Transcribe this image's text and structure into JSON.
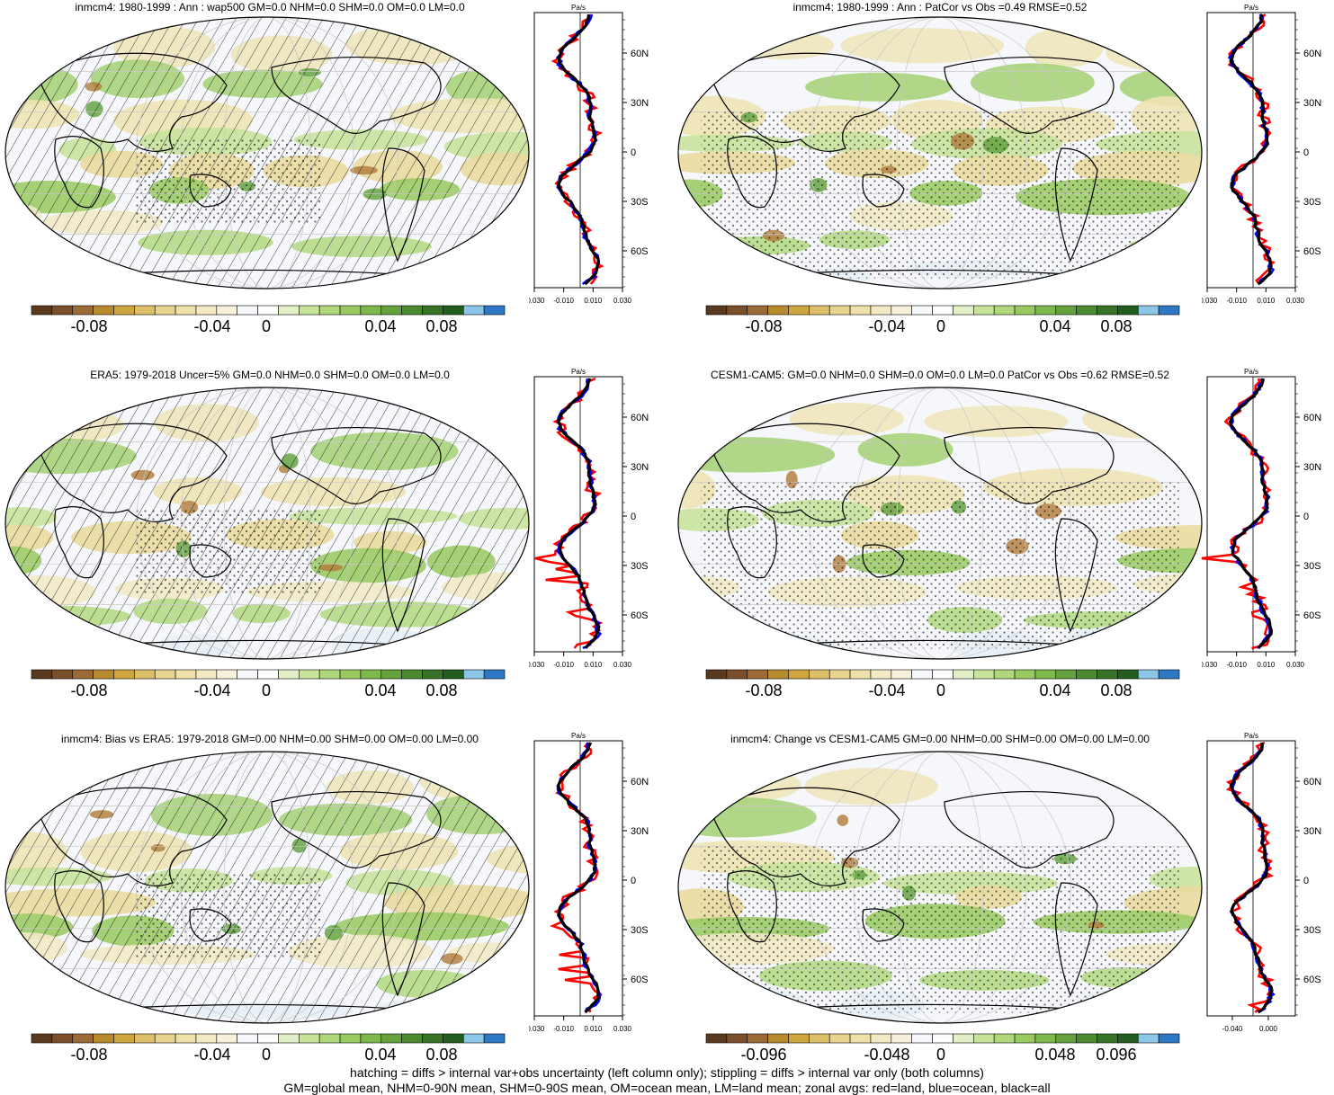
{
  "panels": [
    {
      "title": "inmcm4: 1980-1999 : Ann : wap500 GM=0.0 NHM=0.0 SHM=0.0 OM=0.0 LM=0.0",
      "cbar": [
        "-0.08",
        "-0.04",
        "0",
        "0.04",
        "0.08"
      ],
      "zonal_ticks": [
        "-0.030",
        "-0.010",
        "0.010",
        "0.030"
      ],
      "zonal_unit": "Pa/s",
      "hatch": "lines"
    },
    {
      "title": "inmcm4: 1980-1999 : Ann : PatCor vs Obs =0.49 RMSE=0.52",
      "cbar": [
        "-0.08",
        "-0.04",
        "0",
        "0.04",
        "0.08"
      ],
      "zonal_ticks": [
        "-0.030",
        "-0.010",
        "0.010",
        "0.030"
      ],
      "zonal_unit": "Pa/s",
      "hatch": "dots"
    },
    {
      "title": "ERA5: 1979-2018 Uncer=5% GM=0.0 NHM=0.0 SHM=0.0 OM=0.0 LM=0.0",
      "cbar": [
        "-0.08",
        "-0.04",
        "0",
        "0.04",
        "0.08"
      ],
      "zonal_ticks": [
        "-0.030",
        "-0.010",
        "0.010",
        "0.030"
      ],
      "zonal_unit": "Pa/s",
      "hatch": "lines"
    },
    {
      "title": "CESM1-CAM5: GM=0.0 NHM=0.0 SHM=0.0 OM=0.0 LM=0.0 PatCor vs Obs =0.62 RMSE=0.52",
      "cbar": [
        "-0.08",
        "-0.04",
        "0",
        "0.04",
        "0.08"
      ],
      "zonal_ticks": [
        "-0.030",
        "-0.010",
        "0.010",
        "0.030"
      ],
      "zonal_unit": "Pa/s",
      "hatch": "dots"
    },
    {
      "title": "inmcm4: Bias vs ERA5: 1979-2018 GM=0.00 NHM=0.00 SHM=0.00 OM=0.00 LM=0.00",
      "cbar": [
        "-0.08",
        "-0.04",
        "0",
        "0.04",
        "0.08"
      ],
      "zonal_ticks": [
        "-0.030",
        "-0.010",
        "0.010",
        "0.030"
      ],
      "zonal_unit": "Pa/s",
      "hatch": "lines"
    },
    {
      "title": "inmcm4: Change vs CESM1-CAM5 GM=0.00 NHM=0.00 SHM=0.00 OM=0.00 LM=0.00",
      "cbar": [
        "-0.096",
        "-0.048",
        "0",
        "0.048",
        "0.096"
      ],
      "zonal_ticks": [
        "-0.040",
        "0.000"
      ],
      "zonal_unit": "Pa/s",
      "hatch": "dots"
    }
  ],
  "lat_labels": [
    "60N",
    "30N",
    "0",
    "30S",
    "60S"
  ],
  "colorbar_colors": [
    "#5a3a1e",
    "#7b4f2a",
    "#9b6a36",
    "#b88a2e",
    "#cfa540",
    "#dcbf68",
    "#e8d48e",
    "#efe1aa",
    "#f3eac3",
    "#f7f1dc",
    "#f7f8fc",
    "#ffffff",
    "#e2efc7",
    "#c8e39a",
    "#b0d77c",
    "#98ca5f",
    "#7db84a",
    "#63a23c",
    "#4c8a2f",
    "#367326",
    "#245e1e",
    "#8cc6e8",
    "#2c78c4"
  ],
  "zonal_series": [
    {
      "name": "land",
      "color": "#ff0000"
    },
    {
      "name": "ocean",
      "color": "#0000ff"
    },
    {
      "name": "all",
      "color": "#000000"
    }
  ],
  "footer": {
    "line1": "hatching = diffs > internal var+obs uncertainty (left column only); stippling = diffs > internal var only (both columns)",
    "line2": "GM=global mean, NHM=0-90N mean, SHM=0-90S mean, OM=ocean mean, LM=land mean; zonal avgs: red=land, blue=ocean, black=all"
  }
}
